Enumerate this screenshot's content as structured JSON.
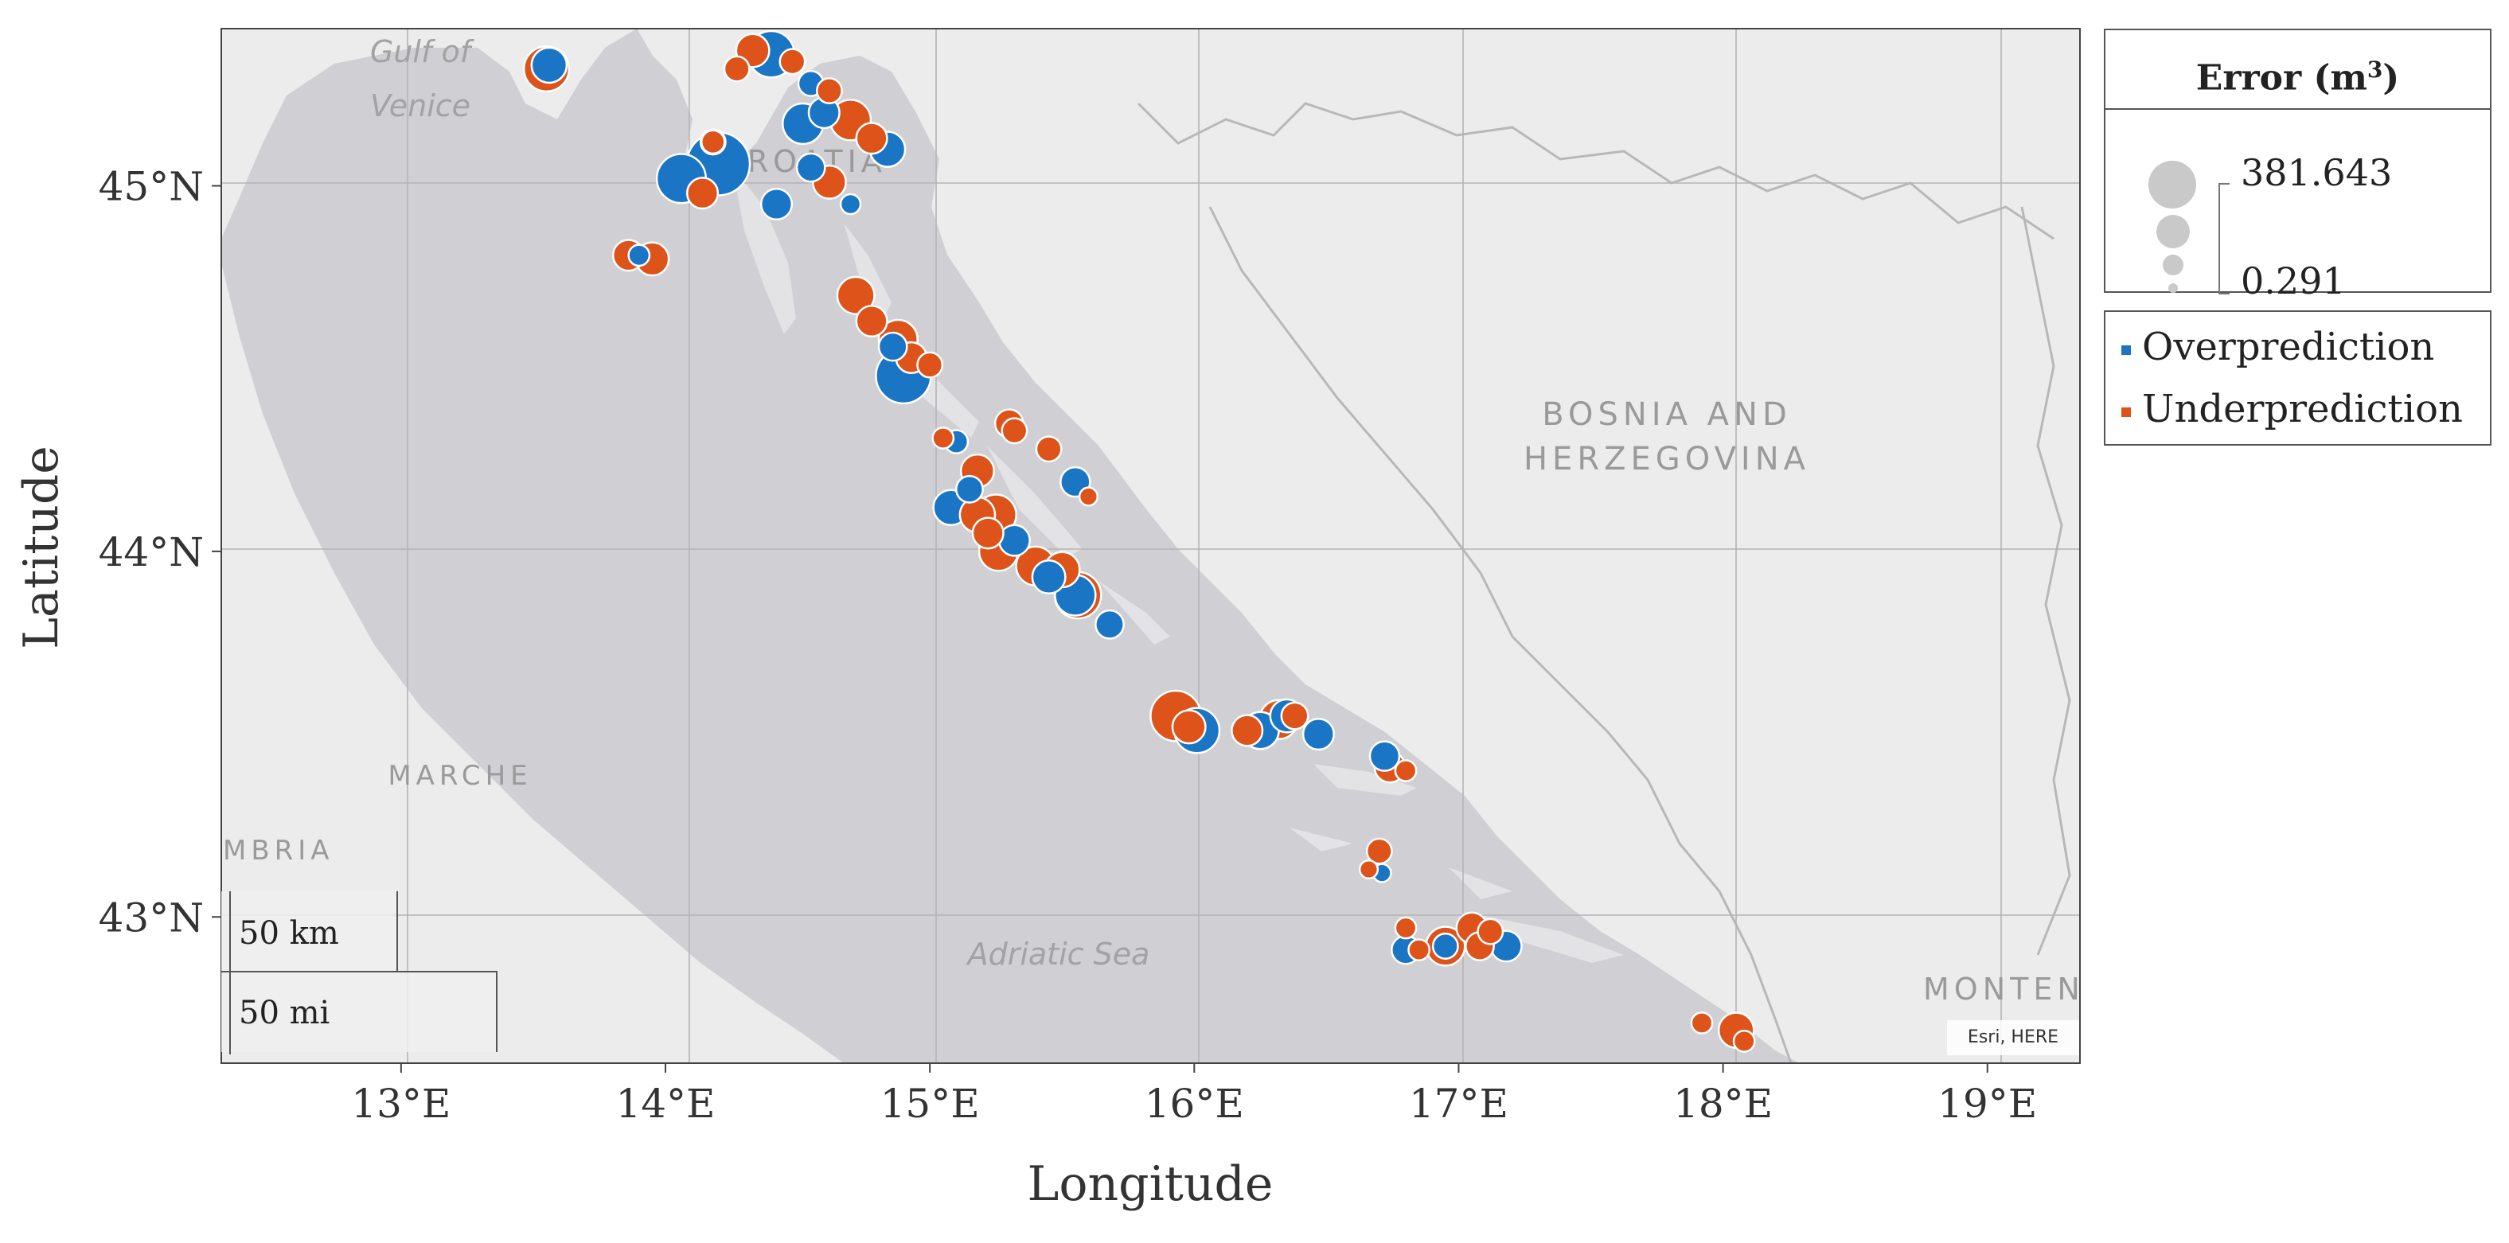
{
  "axes": {
    "xlabel": "Longitude",
    "ylabel": "Latitude",
    "x_ticks": [
      {
        "value": 13,
        "label": "13°E"
      },
      {
        "value": 14,
        "label": "14°E"
      },
      {
        "value": 15,
        "label": "15°E"
      },
      {
        "value": 16,
        "label": "16°E"
      },
      {
        "value": 17,
        "label": "17°E"
      },
      {
        "value": 18,
        "label": "18°E"
      },
      {
        "value": 19,
        "label": "19°E"
      }
    ],
    "y_ticks": [
      {
        "value": 45,
        "label": "45°N"
      },
      {
        "value": 44,
        "label": "44°N"
      },
      {
        "value": 43,
        "label": "43°N"
      }
    ],
    "xlim": [
      12.32,
      19.35
    ],
    "ylim": [
      42.6,
      45.43
    ],
    "grid": true
  },
  "map_labels": {
    "gulf": [
      "Gulf of",
      "Venice"
    ],
    "croatia": "CROATIA",
    "bosnia": [
      "BOSNIA AND",
      "HERZEGOVINA"
    ],
    "marche": "MARCHE",
    "umbria": "MBRIA",
    "adriatic": "Adriatic Sea",
    "montenegro": "MONTEN"
  },
  "credit": "Esri, HERE",
  "scale_bar": {
    "km_label": "50 km",
    "mi_label": "50 mi"
  },
  "legend": {
    "size_title": "Error (m",
    "size_title_sup": "3",
    "size_title_close": ")",
    "max_value": "381.643",
    "min_value": "0.291",
    "over_label": "Overprediction",
    "under_label": "Underprediction"
  },
  "colors": {
    "over": "#1a76c4",
    "under": "#dd5319",
    "sea": "#cfcfd4",
    "land": "#ececec"
  },
  "chart_data": {
    "type": "scatter",
    "x_unit": "degrees E",
    "y_unit": "degrees N",
    "size_metric": "Error (m3)",
    "size_range": [
      0.291,
      381.643
    ],
    "series": [
      {
        "name": "Overprediction",
        "points": [
          [
            13.56,
            45.33,
            60
          ],
          [
            14.4,
            45.36,
            130
          ],
          [
            14.55,
            45.28,
            20
          ],
          [
            14.6,
            45.2,
            40
          ],
          [
            14.52,
            45.17,
            90
          ],
          [
            14.55,
            45.05,
            30
          ],
          [
            14.7,
            44.95,
            8
          ],
          [
            14.84,
            45.1,
            60
          ],
          [
            14.2,
            45.06,
            280
          ],
          [
            14.06,
            45.02,
            150
          ],
          [
            14.42,
            44.95,
            40
          ],
          [
            14.18,
            45.12,
            20
          ],
          [
            13.9,
            44.81,
            10
          ],
          [
            14.9,
            44.48,
            200
          ],
          [
            14.86,
            44.56,
            30
          ],
          [
            15.1,
            44.3,
            15
          ],
          [
            15.55,
            44.19,
            35
          ],
          [
            15.15,
            44.17,
            25
          ],
          [
            15.08,
            44.12,
            60
          ],
          [
            15.32,
            44.03,
            40
          ],
          [
            15.45,
            43.93,
            50
          ],
          [
            15.55,
            43.88,
            90
          ],
          [
            15.68,
            43.8,
            30
          ],
          [
            16.01,
            43.51,
            120
          ],
          [
            16.25,
            43.51,
            70
          ],
          [
            16.35,
            43.55,
            50
          ],
          [
            16.47,
            43.5,
            40
          ],
          [
            16.72,
            43.44,
            35
          ],
          [
            16.71,
            43.12,
            5
          ],
          [
            16.8,
            42.91,
            30
          ],
          [
            16.95,
            42.92,
            20
          ],
          [
            17.18,
            42.92,
            40
          ]
        ]
      },
      {
        "name": "Underprediction",
        "points": [
          [
            13.55,
            45.32,
            120
          ],
          [
            14.33,
            45.37,
            50
          ],
          [
            14.27,
            45.32,
            20
          ],
          [
            14.48,
            45.34,
            20
          ],
          [
            14.7,
            45.18,
            90
          ],
          [
            14.78,
            45.13,
            40
          ],
          [
            14.62,
            45.01,
            50
          ],
          [
            14.62,
            45.26,
            20
          ],
          [
            14.14,
            44.98,
            40
          ],
          [
            14.18,
            45.12,
            15
          ],
          [
            13.86,
            44.81,
            40
          ],
          [
            13.95,
            44.8,
            50
          ],
          [
            14.72,
            44.7,
            70
          ],
          [
            14.78,
            44.63,
            40
          ],
          [
            14.88,
            44.58,
            80
          ],
          [
            14.93,
            44.53,
            40
          ],
          [
            15.0,
            44.51,
            20
          ],
          [
            15.3,
            44.35,
            30
          ],
          [
            15.32,
            44.33,
            20
          ],
          [
            15.45,
            44.28,
            20
          ],
          [
            15.05,
            44.31,
            10
          ],
          [
            15.18,
            44.22,
            50
          ],
          [
            15.18,
            44.1,
            60
          ],
          [
            15.25,
            44.1,
            90
          ],
          [
            15.22,
            44.05,
            40
          ],
          [
            15.26,
            44.0,
            80
          ],
          [
            15.4,
            43.96,
            80
          ],
          [
            15.5,
            43.95,
            60
          ],
          [
            15.56,
            43.88,
            130
          ],
          [
            15.6,
            44.15,
            5
          ],
          [
            15.93,
            43.55,
            160
          ],
          [
            15.98,
            43.52,
            50
          ],
          [
            16.2,
            43.51,
            40
          ],
          [
            16.32,
            43.54,
            80
          ],
          [
            16.38,
            43.55,
            25
          ],
          [
            16.74,
            43.41,
            40
          ],
          [
            16.8,
            43.4,
            10
          ],
          [
            16.7,
            43.18,
            20
          ],
          [
            16.66,
            43.13,
            5
          ],
          [
            16.8,
            42.97,
            10
          ],
          [
            16.85,
            42.91,
            10
          ],
          [
            16.95,
            42.92,
            80
          ],
          [
            17.05,
            42.97,
            40
          ],
          [
            17.08,
            42.92,
            30
          ],
          [
            17.12,
            42.96,
            20
          ],
          [
            17.92,
            42.71,
            10
          ],
          [
            18.05,
            42.69,
            60
          ],
          [
            18.08,
            42.66,
            10
          ]
        ]
      }
    ]
  }
}
